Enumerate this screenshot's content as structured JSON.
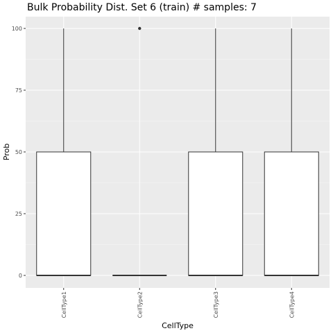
{
  "chart_data": {
    "type": "boxplot",
    "title": "Bulk Probability Dist. Set 6 (train) # samples: 7",
    "xlabel": "CellType",
    "ylabel": "Prob",
    "categories": [
      "CellType1",
      "CellType2",
      "CellType3",
      "CellType4"
    ],
    "boxes": [
      {
        "category": "CellType1",
        "min": 0,
        "q1": 0,
        "median": 0,
        "q3": 50,
        "max": 100,
        "outliers": []
      },
      {
        "category": "CellType2",
        "min": 0,
        "q1": 0,
        "median": 0,
        "q3": 0,
        "max": 0,
        "outliers": [
          100
        ]
      },
      {
        "category": "CellType3",
        "min": 0,
        "q1": 0,
        "median": 0,
        "q3": 50,
        "max": 100,
        "outliers": []
      },
      {
        "category": "CellType4",
        "min": 0,
        "q1": 0,
        "median": 0,
        "q3": 50,
        "max": 100,
        "outliers": []
      }
    ],
    "yticks": [
      0,
      25,
      50,
      75,
      100
    ],
    "ylim": [
      -5,
      105
    ],
    "grid": true,
    "colors": {
      "panel": "#ebebeb",
      "grid_major": "#ffffff",
      "box_fill": "#ffffff",
      "box_line": "#333333",
      "tick_text": "#4d4d4d"
    }
  }
}
